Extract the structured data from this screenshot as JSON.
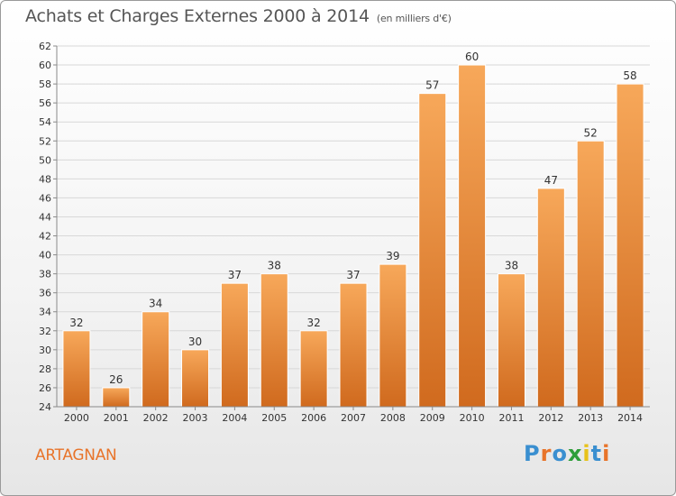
{
  "title": "Achats et Charges Externes 2000 à 2014",
  "subtitle": "(en milliers d'€)",
  "place": "ARTAGNAN",
  "logo": {
    "letters": [
      "P",
      "r",
      "o",
      "x",
      "i",
      "t",
      "i"
    ],
    "colors": [
      "#3a8fd0",
      "#e8742a",
      "#3a8fd0",
      "#2e9e3a",
      "#e8c21a",
      "#3a8fd0",
      "#e8742a"
    ]
  },
  "colors": {
    "bar_light": "#f7a85a",
    "bar_dark": "#d06a1e",
    "grid": "#d8d8d8",
    "axis": "#8a8a8a",
    "text": "#333333"
  },
  "chart_data": {
    "type": "bar",
    "categories": [
      "2000",
      "2001",
      "2002",
      "2003",
      "2004",
      "2005",
      "2006",
      "2007",
      "2008",
      "2009",
      "2010",
      "2011",
      "2012",
      "2013",
      "2014"
    ],
    "values": [
      32,
      26,
      34,
      30,
      37,
      38,
      32,
      37,
      39,
      57,
      60,
      38,
      47,
      52,
      58
    ],
    "ylim": [
      24,
      62
    ],
    "ytick_step": 2,
    "grid": true,
    "data_labels": true
  }
}
